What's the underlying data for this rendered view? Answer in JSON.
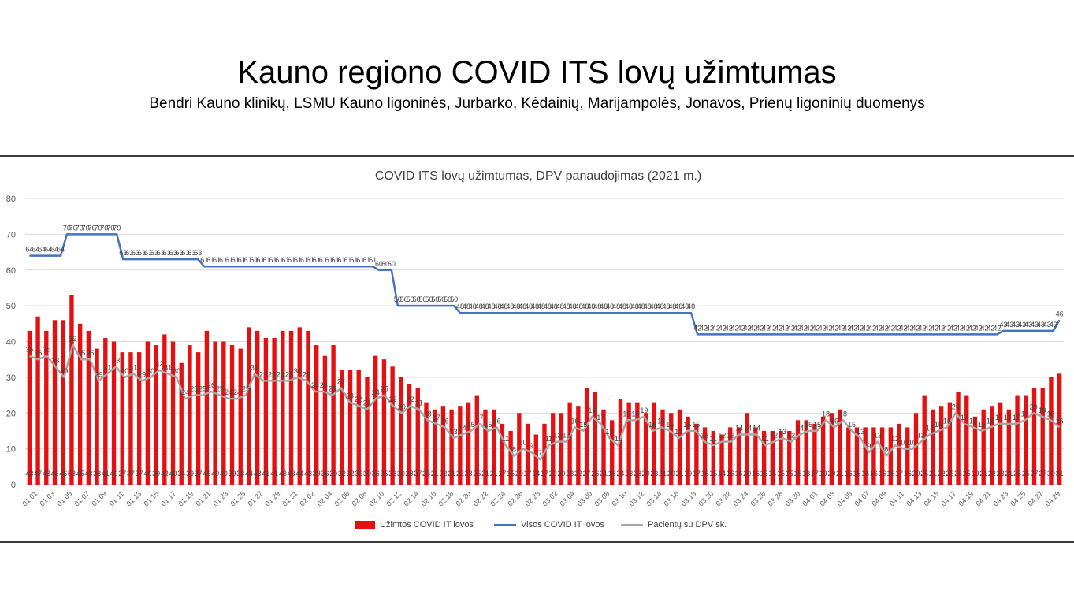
{
  "title": "Kauno regiono COVID ITS lovų užimtumas",
  "subtitle": "Bendri Kauno klinikų, LSMU Kauno ligoninės, Jurbarko, Kėdainių, Marijampolės, Jonavos, Prienų ligoninių duomenys",
  "colors": {
    "bars": "#e61010",
    "total_line": "#4472c4",
    "dpv_line": "#a6a6a6",
    "grid": "#d9d9d9"
  },
  "chart_data": {
    "type": "bar",
    "title": "COVID ITS lovų užimtumas, DPV panaudojimas (2021 m.)",
    "xlabel": "",
    "ylabel": "",
    "ylim": [
      0,
      80
    ],
    "yticks": [
      0,
      10,
      20,
      30,
      40,
      50,
      60,
      70,
      80
    ],
    "grid": true,
    "legend_position": "bottom",
    "x_tick_labels": [
      "01.01",
      "01.03",
      "01.05",
      "01.07",
      "01.09",
      "01.11",
      "01.13",
      "01.15",
      "01.17",
      "01.19",
      "01.21",
      "01.23",
      "01.25",
      "01.27",
      "01.29",
      "01.31",
      "02.02",
      "02.04",
      "02.06",
      "02.08",
      "02.10",
      "02.12",
      "02.14",
      "02.16",
      "02.18",
      "02.20",
      "02.22",
      "02.24",
      "02.26",
      "02.28",
      "03.02",
      "03.04",
      "03.06",
      "03.08",
      "03.10",
      "03.12",
      "03.14",
      "03.16",
      "03.18",
      "03.20",
      "03.22",
      "03.24",
      "03.26",
      "03.28",
      "03.30",
      "04.01",
      "04.03",
      "04.05",
      "04.07",
      "04.09",
      "04.11",
      "04.13",
      "04.15",
      "04.17",
      "04.19",
      "04.21",
      "04.23",
      "04.25",
      "04.27",
      "04.29"
    ],
    "series": [
      {
        "name": "Užimtos COVID IT lovos",
        "kind": "bar",
        "values": [
          43,
          47,
          43,
          46,
          46,
          53,
          45,
          43,
          38,
          41,
          40,
          37,
          37,
          37,
          40,
          39,
          42,
          40,
          34,
          39,
          37,
          43,
          40,
          40,
          39,
          38,
          44,
          43,
          41,
          41,
          43,
          43,
          44,
          43,
          39,
          36,
          39,
          32,
          32,
          32,
          30,
          36,
          35,
          33,
          30,
          28,
          27,
          23,
          21,
          22,
          21,
          22,
          23,
          25,
          21,
          21,
          17,
          15,
          20,
          17,
          14,
          17,
          20,
          20,
          23,
          22,
          27,
          26,
          21,
          18,
          24,
          23,
          23,
          20,
          23,
          21,
          20,
          21,
          19,
          17,
          16,
          15,
          14,
          16,
          16,
          20,
          16,
          15,
          15,
          15,
          15,
          18,
          18,
          17,
          19,
          20,
          21,
          16,
          16,
          16,
          16,
          16,
          16,
          17,
          16,
          20,
          25,
          21,
          22,
          23,
          26,
          25,
          19,
          21,
          22,
          23,
          21,
          25,
          25,
          27,
          27,
          30,
          31
        ]
      },
      {
        "name": "Visos COVID IT lovos",
        "kind": "line",
        "values": [
          64,
          64,
          64,
          64,
          64,
          64,
          70,
          70,
          70,
          70,
          70,
          70,
          70,
          70,
          70,
          63,
          63,
          63,
          63,
          63,
          63,
          63,
          63,
          63,
          63,
          63,
          63,
          63,
          61,
          61,
          61,
          61,
          61,
          61,
          61,
          61,
          61,
          61,
          61,
          61,
          61,
          61,
          61,
          61,
          61,
          61,
          61,
          61,
          61,
          61,
          61,
          61,
          61,
          61,
          61,
          61,
          60,
          60,
          60,
          50,
          50,
          50,
          50,
          50,
          50,
          50,
          50,
          50,
          50,
          48,
          48,
          48,
          48,
          48,
          48,
          48,
          48,
          48,
          48,
          48,
          48,
          48,
          48,
          48,
          48,
          48,
          48,
          48,
          48,
          48,
          48,
          48,
          48,
          48,
          48,
          48,
          48,
          48,
          48,
          48,
          48,
          48,
          48,
          48,
          48,
          48,
          48,
          42,
          42,
          42,
          42,
          42,
          42,
          42,
          42,
          42,
          42,
          42,
          42,
          42,
          42,
          42,
          42,
          42,
          42,
          42,
          42,
          42,
          42,
          42,
          42,
          42,
          42,
          42,
          42,
          42,
          42,
          42,
          42,
          42,
          42,
          42,
          42,
          42,
          42,
          42,
          42,
          42,
          42,
          42,
          42,
          42,
          42,
          42,
          42,
          42,
          43,
          43,
          43,
          43,
          43,
          43,
          43,
          43,
          43,
          46
        ]
      },
      {
        "name": "Pacientų su DPV sk.",
        "kind": "line",
        "values": [
          36,
          35,
          36,
          33,
          30,
          39,
          35,
          35,
          29,
          31,
          33,
          30,
          31,
          29,
          30,
          32,
          31,
          30,
          24,
          25,
          25,
          26,
          25,
          24,
          24,
          25,
          31,
          29,
          29,
          29,
          29,
          30,
          29,
          26,
          26,
          25,
          27,
          23,
          22,
          21,
          24,
          25,
          22,
          20,
          22,
          21,
          18,
          17,
          16,
          13,
          14,
          15,
          17,
          15,
          16,
          11,
          8,
          10,
          9,
          7,
          11,
          12,
          12,
          16,
          15,
          19,
          17,
          13,
          11,
          18,
          18,
          19,
          15,
          16,
          15,
          13,
          15,
          15,
          12,
          11,
          12,
          12,
          14,
          14,
          14,
          11,
          12,
          13,
          12,
          14,
          15,
          15,
          18,
          16,
          18,
          15,
          13,
          9,
          12,
          8,
          11,
          10,
          10,
          12,
          14,
          15,
          16,
          20,
          17,
          16,
          15,
          16,
          17,
          17,
          17,
          18,
          20,
          19,
          18,
          16
        ]
      }
    ]
  }
}
